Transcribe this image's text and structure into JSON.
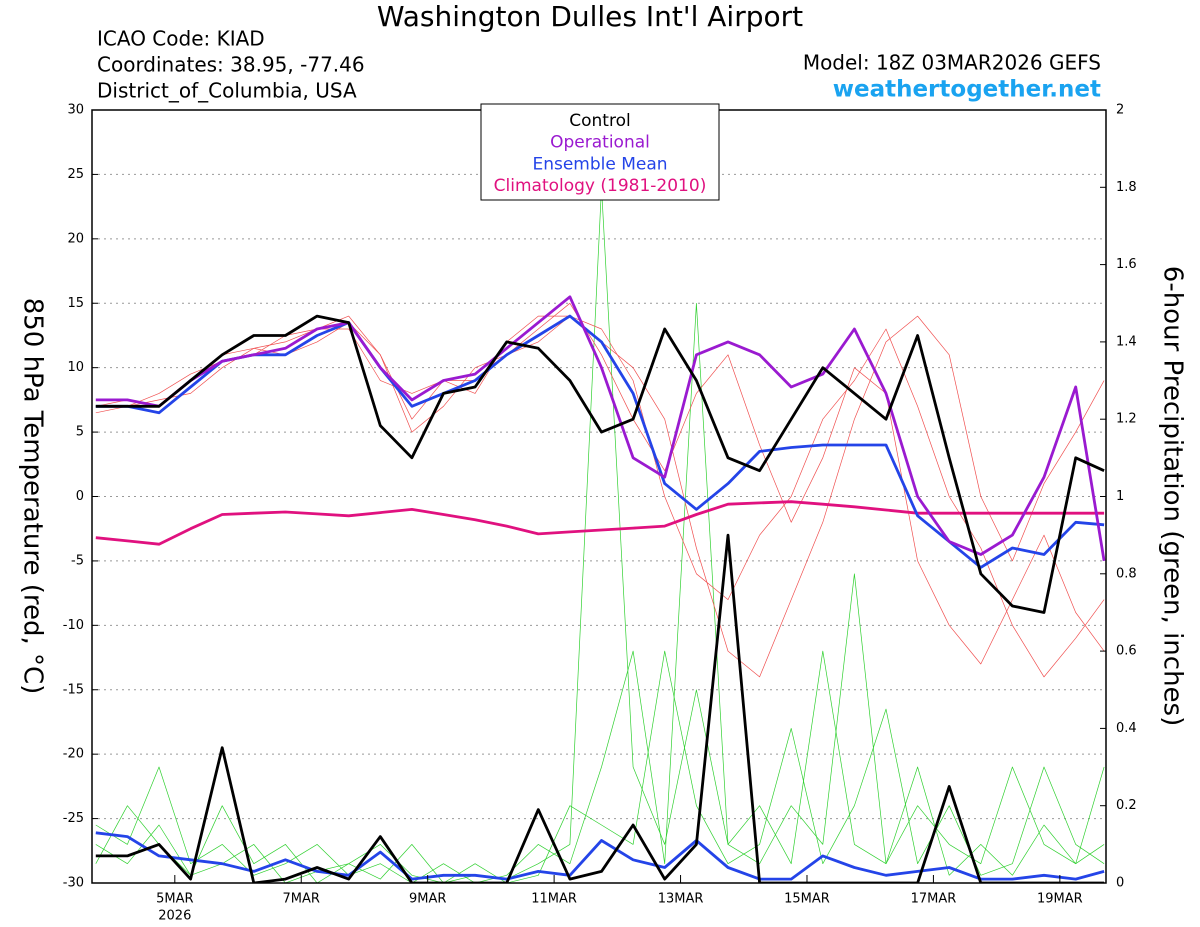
{
  "chart_data": {
    "type": "line",
    "title": "Washington Dulles Int'l Airport",
    "info": [
      "ICAO Code: KIAD",
      "Coordinates: 38.95, -77.46",
      "District_of_Columbia, USA"
    ],
    "model": "Model: 18Z 03MAR2026 GEFS",
    "source": "weathertogether.net",
    "ylabel": "850 hPa Temperature (red, °C)",
    "y2label": "6-hour Precipitation (green, inches)",
    "year_label": "2026",
    "xlim": [
      3.69,
      19.73
    ],
    "xticks": [
      {
        "value": 5,
        "label": "5MAR"
      },
      {
        "value": 7,
        "label": "7MAR"
      },
      {
        "value": 9,
        "label": "9MAR"
      },
      {
        "value": 11,
        "label": "11MAR"
      },
      {
        "value": 13,
        "label": "13MAR"
      },
      {
        "value": 15,
        "label": "15MAR"
      },
      {
        "value": 17,
        "label": "17MAR"
      },
      {
        "value": 19,
        "label": "19MAR"
      }
    ],
    "ylim": [
      -30,
      30
    ],
    "yticks": [
      -30,
      -25,
      -20,
      -15,
      -10,
      -5,
      0,
      5,
      10,
      15,
      20,
      25,
      30
    ],
    "y2lim": [
      0,
      2
    ],
    "y2ticks": [
      0,
      0.2,
      0.4,
      0.6,
      0.8,
      1,
      1.2,
      1.4,
      1.6,
      1.8,
      2
    ],
    "grid": true,
    "legend": "top",
    "x": [
      3.75,
      4.25,
      4.75,
      5.25,
      5.75,
      6.25,
      6.75,
      7.25,
      7.75,
      8.25,
      8.75,
      9.25,
      9.75,
      10.25,
      10.75,
      11.25,
      11.75,
      12.25,
      12.75,
      13.25,
      13.75,
      14.25,
      14.75,
      15.25,
      15.75,
      16.25,
      16.75,
      17.25,
      17.75,
      18.25,
      18.75,
      19.25,
      19.7
    ],
    "series": [
      {
        "name": "Control",
        "color": "#000000",
        "width": 2.8,
        "values": [
          7,
          7,
          7,
          9,
          11,
          12.5,
          12.5,
          14,
          13.5,
          5.5,
          3,
          8,
          8.5,
          12,
          11.5,
          9,
          5,
          6,
          13,
          9,
          3,
          2,
          6,
          10,
          8,
          6,
          12.5,
          3,
          -6,
          -8.5,
          -9,
          3,
          2
        ]
      },
      {
        "name": "Operational",
        "color": "#9a1ad0",
        "width": 2.8,
        "values": [
          7.5,
          7.5,
          7,
          9,
          10.5,
          11,
          11.5,
          13,
          13.5,
          10,
          7.5,
          9,
          9.5,
          11.5,
          13.5,
          15.5,
          10,
          3,
          1.5,
          11,
          12,
          11,
          8.5,
          9.5,
          13,
          8,
          0,
          -3.5,
          -4.5,
          -3,
          1.5,
          8.5,
          -5
        ]
      },
      {
        "name": "Ensemble Mean",
        "color": "#2444e8",
        "width": 2.8,
        "values": [
          7,
          7,
          6.5,
          8.5,
          10.5,
          11,
          11,
          12.5,
          13.5,
          10,
          7,
          8,
          9,
          11,
          12.5,
          14,
          12,
          8,
          1,
          -1,
          1,
          3.5,
          3.8,
          4,
          4,
          4,
          -1.5,
          -3.5,
          -5.5,
          -4,
          -4.5,
          -2,
          -2.2
        ]
      },
      {
        "name": "Climatology (1981-2010)",
        "color": "#e0117f",
        "width": 2.8,
        "values": [
          -3.2,
          -3.45,
          -3.7,
          -2.5,
          -1.4,
          -1.3,
          -1.2,
          -1.35,
          -1.5,
          -1.25,
          -1,
          -1.4,
          -1.8,
          -2.3,
          -2.9,
          -2.75,
          -2.6,
          -2.45,
          -2.3,
          -1.4,
          -0.6,
          -0.5,
          -0.4,
          -0.6,
          -0.8,
          -1.05,
          -1.3,
          -1.3,
          -1.3,
          -1.3,
          -1.3,
          -1.3,
          -1.3
        ]
      },
      {
        "color": "#000000",
        "width": 2.8,
        "axis": "y2",
        "values": [
          0.07,
          0.07,
          0.1,
          0.01,
          0.35,
          0,
          0.01,
          0.04,
          0.01,
          0.12,
          0,
          0,
          0,
          0,
          0.19,
          0.01,
          0.03,
          0.15,
          0.01,
          0.1,
          0.9,
          0,
          0,
          0,
          0,
          0,
          0,
          0.25,
          0,
          0,
          0,
          0,
          0
        ]
      },
      {
        "color": "#2444e8",
        "width": 2.8,
        "axis": "y2",
        "values": [
          0.13,
          0.12,
          0.07,
          0.06,
          0.05,
          0.03,
          0.06,
          0.03,
          0.02,
          0.08,
          0.01,
          0.02,
          0.02,
          0.01,
          0.03,
          0.02,
          0.11,
          0.06,
          0.04,
          0.11,
          0.04,
          0.01,
          0.01,
          0.07,
          0.04,
          0.02,
          0.03,
          0.04,
          0.01,
          0.01,
          0.02,
          0.01,
          0.03
        ]
      },
      {
        "color": "#f05050",
        "width": 0.7,
        "values": [
          7,
          7.5,
          7,
          9,
          11,
          11.5,
          12,
          13,
          14,
          11,
          6,
          9,
          9,
          11,
          13,
          15,
          11,
          6,
          2,
          8,
          11,
          4,
          -2,
          3,
          10,
          8,
          -5,
          -10,
          -13,
          -8,
          -3,
          -9,
          -12
        ]
      },
      {
        "color": "#f05050",
        "width": 0.7,
        "values": [
          6.5,
          7,
          8,
          9.5,
          10.5,
          11,
          12.5,
          13,
          13,
          9,
          8,
          9,
          8,
          12,
          14,
          14,
          13,
          9,
          0,
          -6,
          -8,
          -3,
          0,
          6,
          9,
          13,
          7,
          0,
          -4,
          -10,
          -14,
          -11,
          -8
        ]
      },
      {
        "color": "#f05050",
        "width": 0.7,
        "values": [
          7,
          7,
          7.5,
          8,
          10,
          11.5,
          11,
          12,
          13.5,
          11,
          5,
          7,
          10,
          11,
          12,
          14,
          12,
          10,
          6,
          -4,
          -12,
          -14,
          -8,
          -2,
          6,
          12,
          14,
          11,
          0,
          -5,
          1,
          5,
          9
        ]
      },
      {
        "color": "#30d030",
        "width": 0.7,
        "axis": "y2",
        "values": [
          0.05,
          0.2,
          0.1,
          0.02,
          0.05,
          0.1,
          0,
          0.03,
          0.05,
          0.01,
          0.1,
          0,
          0.02,
          0.01,
          0.05,
          0.1,
          1.8,
          0.3,
          0.1,
          0.5,
          0.1,
          0.2,
          0.05,
          0.6,
          0.1,
          0.05,
          0.3,
          0.02,
          0.1,
          0.02,
          0.15,
          0.05,
          0.3
        ]
      },
      {
        "color": "#30d030",
        "width": 0.7,
        "axis": "y2",
        "values": [
          0.15,
          0.1,
          0.3,
          0.05,
          0.1,
          0.02,
          0.05,
          0.1,
          0.02,
          0.05,
          0,
          0.05,
          0,
          0.02,
          0.1,
          0.05,
          0.3,
          0.6,
          0.05,
          1.5,
          0.1,
          0.05,
          0.2,
          0.1,
          0.8,
          0.05,
          0.2,
          0.1,
          0.05,
          0.3,
          0.1,
          0.05,
          0.1
        ]
      },
      {
        "color": "#30d030",
        "width": 0.7,
        "axis": "y2",
        "values": [
          0.1,
          0.05,
          0.15,
          0.02,
          0.2,
          0.05,
          0.1,
          0,
          0.05,
          0.1,
          0.02,
          0,
          0.05,
          0,
          0.02,
          0.2,
          0.15,
          0.1,
          0.6,
          0.2,
          0.05,
          0.1,
          0.4,
          0.05,
          0.2,
          0.45,
          0.05,
          0.2,
          0.02,
          0.05,
          0.3,
          0.1,
          0.05
        ]
      }
    ]
  }
}
